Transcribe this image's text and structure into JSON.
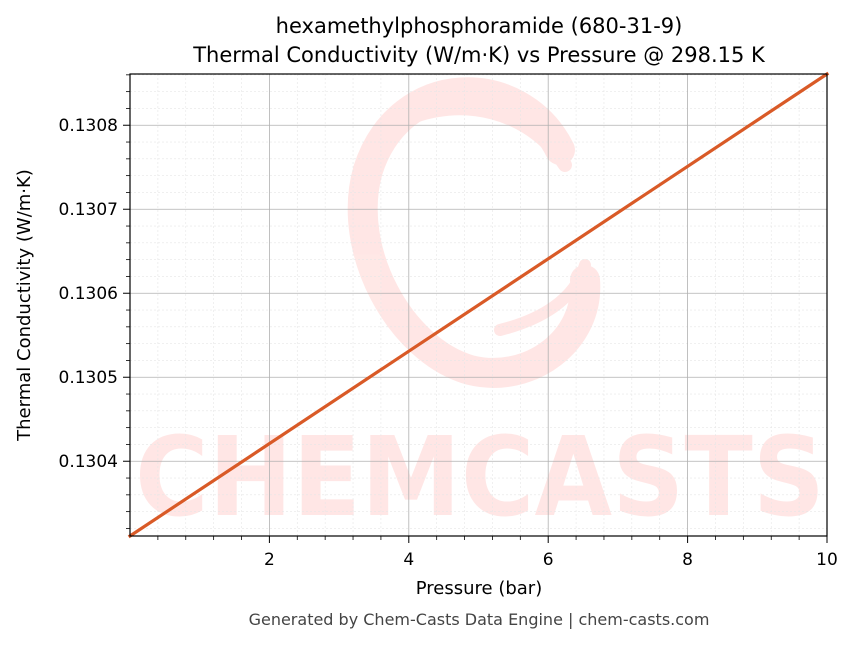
{
  "chart_data": {
    "type": "line",
    "title_line1": "hexamethylphosphoramide (680-31-9)",
    "title_line2": "Thermal Conductivity (W/m·K) vs Pressure @ 298.15 K",
    "xlabel": "Pressure (bar)",
    "ylabel": "Thermal Conductivity (W/m·K)",
    "xlim": [
      0.0,
      10.0
    ],
    "ylim": [
      0.130311,
      0.130861
    ],
    "xticks": [
      2,
      4,
      6,
      8,
      10
    ],
    "xtick_labels": [
      "2",
      "4",
      "6",
      "8",
      "10"
    ],
    "yticks": [
      0.1304,
      0.1305,
      0.1306,
      0.1307,
      0.1308
    ],
    "ytick_labels": [
      "0.1304",
      "0.1305",
      "0.1306",
      "0.1307",
      "0.1308"
    ],
    "grid": true,
    "series": [
      {
        "color": "#d95a27",
        "x": [
          0.0,
          10.0
        ],
        "y": [
          0.130311,
          0.130861
        ]
      }
    ],
    "watermark": "CHEMCASTS",
    "footer": "Generated by Chem-Casts Data Engine | chem-casts.com"
  }
}
